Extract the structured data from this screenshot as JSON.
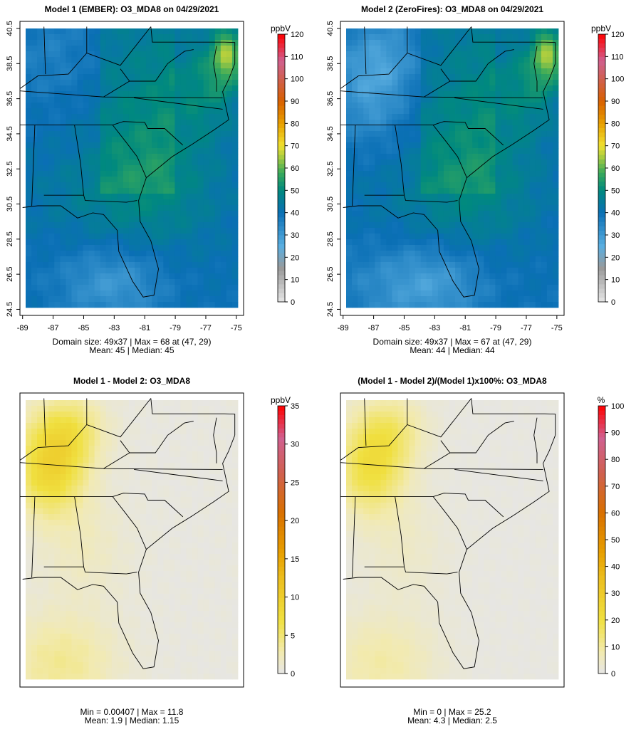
{
  "chart_data": [
    {
      "type": "heatmap",
      "title": "Model 1 (EMBER): O3_MDA8 on 04/29/2021",
      "unit": "ppbV",
      "colorbar_range": [
        0,
        120
      ],
      "colorbar_ticks": [
        "0",
        "10",
        "20",
        "30",
        "40",
        "50",
        "60",
        "70",
        "80",
        "90",
        "100",
        "110",
        "120"
      ],
      "x_ticks": [
        "-89",
        "-87",
        "-85",
        "-83",
        "-81",
        "-79",
        "-77",
        "-75"
      ],
      "y_ticks": [
        "24.5",
        "26.5",
        "28.5",
        "30.5",
        "32.5",
        "34.5",
        "36.5",
        "38.5",
        "40.5"
      ],
      "stats_line1": "Domain size: 49x37 | Max = 68 at (47, 29)",
      "stats_line2": "Mean: 45 |  Median: 45",
      "field": "model1"
    },
    {
      "type": "heatmap",
      "title": "Model 2 (ZeroFires): O3_MDA8 on 04/29/2021",
      "unit": "ppbV",
      "colorbar_range": [
        0,
        120
      ],
      "colorbar_ticks": [
        "0",
        "10",
        "20",
        "30",
        "40",
        "50",
        "60",
        "70",
        "80",
        "90",
        "100",
        "110",
        "120"
      ],
      "x_ticks": [
        "-89",
        "-87",
        "-85",
        "-83",
        "-81",
        "-79",
        "-77",
        "-75"
      ],
      "y_ticks": [
        "24.5",
        "26.5",
        "28.5",
        "30.5",
        "32.5",
        "34.5",
        "36.5",
        "38.5",
        "40.5"
      ],
      "stats_line1": "Domain size: 49x37 | Max = 67 at (47, 29)",
      "stats_line2": "Mean: 44 |  Median: 44",
      "field": "model2"
    },
    {
      "type": "heatmap",
      "title": "Model 1 - Model 2: O3_MDA8",
      "unit": "ppbV",
      "colorbar_range": [
        0,
        35
      ],
      "colorbar_ticks": [
        "0",
        "5",
        "10",
        "15",
        "20",
        "25",
        "30",
        "35"
      ],
      "x_ticks": [],
      "y_ticks": [],
      "stats_line1": "Min = 0.00407 | Max = 11.8",
      "stats_line2": "Mean: 1.9 |  Median: 1.15",
      "field": "diff"
    },
    {
      "type": "heatmap",
      "title": "(Model 1 - Model 2)/(Model 1)x100%: O3_MDA8",
      "unit": "%",
      "colorbar_range": [
        0,
        100
      ],
      "colorbar_ticks": [
        "0",
        "10",
        "20",
        "30",
        "40",
        "50",
        "60",
        "70",
        "80",
        "90",
        "100"
      ],
      "x_ticks": [],
      "y_ticks": [],
      "stats_line1": "Min = 0 | Max = 25.2",
      "stats_line2": "Mean: 4.3 |  Median: 2.5",
      "field": "pct"
    }
  ],
  "colors": {
    "abs_scale": [
      [
        0,
        "#e6e6e6"
      ],
      [
        15,
        "#9a9a9a"
      ],
      [
        25,
        "#5aaee0"
      ],
      [
        40,
        "#0a6fb5"
      ],
      [
        50,
        "#00897f"
      ],
      [
        58,
        "#3aaa5a"
      ],
      [
        65,
        "#a8cc40"
      ],
      [
        70,
        "#f0e030"
      ],
      [
        80,
        "#e8a000"
      ],
      [
        90,
        "#d86000"
      ],
      [
        100,
        "#d06050"
      ],
      [
        108,
        "#d06090"
      ],
      [
        120,
        "#ff0000"
      ]
    ],
    "diff_scale": [
      [
        0,
        "#e6e6e6"
      ],
      [
        0.08,
        "#f2eab0"
      ],
      [
        0.2,
        "#f0e040"
      ],
      [
        0.35,
        "#ecc020"
      ],
      [
        0.45,
        "#e8a000"
      ],
      [
        0.6,
        "#d87000"
      ],
      [
        0.75,
        "#d06050"
      ],
      [
        0.88,
        "#d06090"
      ],
      [
        1,
        "#ff0000"
      ]
    ]
  }
}
